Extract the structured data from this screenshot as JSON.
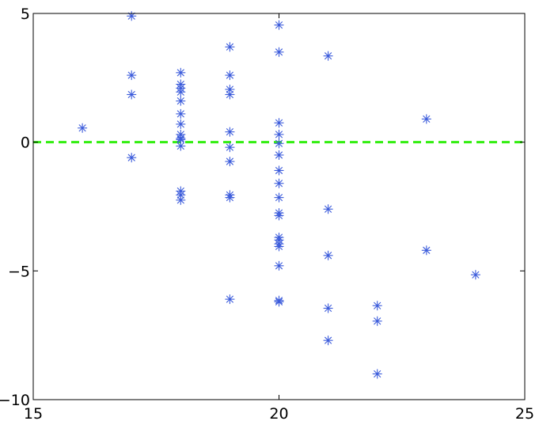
{
  "chart_data": {
    "type": "scatter",
    "title": "",
    "xlabel": "",
    "ylabel": "",
    "xlim": [
      15,
      25
    ],
    "ylim": [
      -10,
      5
    ],
    "x_ticks": [
      15,
      20,
      25
    ],
    "y_ticks": [
      -10,
      -5,
      0,
      5
    ],
    "x_tick_labels": [
      "15",
      "20",
      "25"
    ],
    "y_tick_labels": [
      "−10",
      "−5",
      "0",
      "5"
    ],
    "grid": false,
    "legend": false,
    "marker": "asterisk",
    "series": [
      {
        "color": "#3b5bdb",
        "points": [
          [
            16,
            0.55
          ],
          [
            17,
            4.9
          ],
          [
            17,
            2.6
          ],
          [
            17,
            1.85
          ],
          [
            17,
            -0.6
          ],
          [
            18,
            2.7
          ],
          [
            18,
            2.25
          ],
          [
            18,
            2.1
          ],
          [
            18,
            1.95
          ],
          [
            18,
            1.6
          ],
          [
            18,
            1.1
          ],
          [
            18,
            0.7
          ],
          [
            18,
            0.3
          ],
          [
            18,
            0.15
          ],
          [
            18,
            0.1
          ],
          [
            18,
            -0.15
          ],
          [
            18,
            -1.9
          ],
          [
            18,
            -2.05
          ],
          [
            18,
            -2.25
          ],
          [
            19,
            3.7
          ],
          [
            19,
            2.6
          ],
          [
            19,
            2.05
          ],
          [
            19,
            1.85
          ],
          [
            19,
            0.4
          ],
          [
            19,
            -0.2
          ],
          [
            19,
            -0.75
          ],
          [
            19,
            -2.05
          ],
          [
            19,
            -2.15
          ],
          [
            19,
            -6.1
          ],
          [
            20,
            4.55
          ],
          [
            20,
            3.5
          ],
          [
            20,
            0.75
          ],
          [
            20,
            0.3
          ],
          [
            20,
            -0.05
          ],
          [
            20,
            -0.5
          ],
          [
            20,
            -1.1
          ],
          [
            20,
            -1.6
          ],
          [
            20,
            -2.15
          ],
          [
            20,
            -2.75
          ],
          [
            20,
            -2.85
          ],
          [
            20,
            -3.7
          ],
          [
            20,
            -3.8
          ],
          [
            20,
            -3.95
          ],
          [
            20,
            -4.05
          ],
          [
            20,
            -4.8
          ],
          [
            20,
            -6.15
          ],
          [
            20,
            -6.2
          ],
          [
            21,
            3.35
          ],
          [
            21,
            -2.6
          ],
          [
            21,
            -4.4
          ],
          [
            21,
            -6.45
          ],
          [
            21,
            -7.7
          ],
          [
            22,
            -6.35
          ],
          [
            22,
            -6.95
          ],
          [
            22,
            -9.0
          ],
          [
            23,
            0.9
          ],
          [
            23,
            -4.2
          ],
          [
            24,
            -5.15
          ]
        ]
      }
    ],
    "reference_lines": [
      {
        "orientation": "horizontal",
        "y": 0,
        "style": "dashed",
        "color": "#33ee11"
      }
    ]
  }
}
